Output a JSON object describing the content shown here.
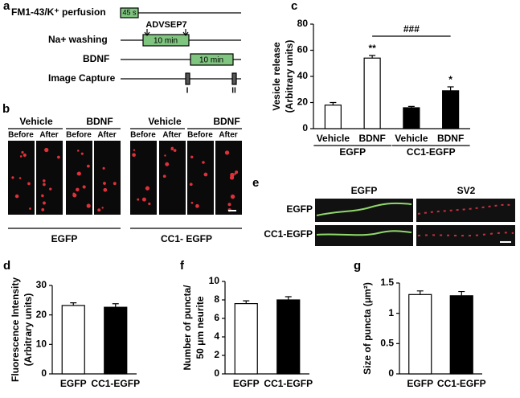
{
  "panels": {
    "a": {
      "label": "a",
      "rows": [
        "FM1-43/K⁺ perfusion",
        "Na+ washing",
        "BDNF",
        "Image Capture"
      ],
      "box_texts": [
        "45 s",
        "10 min",
        "10 min"
      ],
      "drug": "ADVSEP7",
      "captures": [
        "I",
        "II"
      ]
    },
    "b": {
      "label": "b",
      "conditions": [
        "Vehicle",
        "BDNF",
        "Vehicle",
        "BDNF"
      ],
      "times": [
        "Before",
        "After"
      ],
      "groups": [
        "EGFP",
        "CC1- EGFP"
      ]
    },
    "e": {
      "label": "e",
      "columns": [
        "EGFP",
        "SV2"
      ],
      "rows": [
        "EGFP",
        "CC1-EGFP"
      ]
    }
  },
  "chart_data": [
    {
      "type": "bar",
      "panel": "c",
      "ylabel": [
        "Vesicle release",
        "(Arbitrary units)"
      ],
      "categories": [
        "Vehicle",
        "BDNF",
        "Vehicle",
        "BDNF"
      ],
      "values": [
        18,
        54,
        16,
        29
      ],
      "errors": [
        2,
        2,
        1,
        3
      ],
      "colors": [
        "#ffffff",
        "#ffffff",
        "#000000",
        "#000000"
      ],
      "group_labels": [
        "EGFP",
        "CC1-EGFP"
      ],
      "annotations": [
        "**",
        "*",
        "###"
      ],
      "ylim": [
        0,
        80
      ],
      "yticks": [
        0,
        20,
        40,
        60,
        80
      ]
    },
    {
      "type": "bar",
      "panel": "d",
      "ylabel": [
        "Fluorescence Intensity",
        "(Arbitrary units)"
      ],
      "categories": [
        "EGFP",
        "CC1-EGFP"
      ],
      "values": [
        23.2,
        22.6
      ],
      "errors": [
        0.9,
        1.2
      ],
      "colors": [
        "#ffffff",
        "#000000"
      ],
      "ylim": [
        0,
        30
      ],
      "yticks": [
        0,
        10,
        20,
        30
      ]
    },
    {
      "type": "bar",
      "panel": "f",
      "ylabel": [
        "Number of puncta/",
        "50 μm neurite"
      ],
      "categories": [
        "EGFP",
        "CC1-EGFP"
      ],
      "values": [
        7.6,
        8.0
      ],
      "errors": [
        0.3,
        0.35
      ],
      "colors": [
        "#ffffff",
        "#000000"
      ],
      "ylim": [
        0,
        10
      ],
      "yticks": [
        0,
        2,
        4,
        6,
        8,
        10
      ]
    },
    {
      "type": "bar",
      "panel": "g",
      "ylabel": [
        "Size of puncta (μm²)"
      ],
      "categories": [
        "EGFP",
        "CC1-EGFP"
      ],
      "values": [
        1.31,
        1.29
      ],
      "errors": [
        0.06,
        0.07
      ],
      "colors": [
        "#ffffff",
        "#000000"
      ],
      "ylim": [
        0,
        1.5
      ],
      "yticks": [
        0,
        0.5,
        1,
        1.5
      ]
    }
  ]
}
